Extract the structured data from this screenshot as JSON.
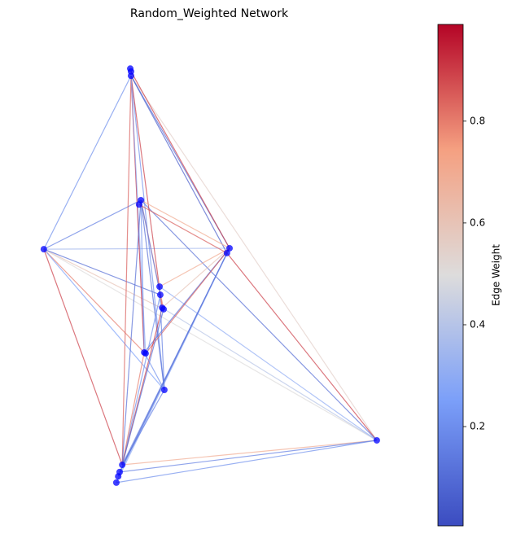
{
  "chart_data": {
    "type": "network",
    "title": "Random_Weighted Network",
    "node_color": "#0000ff",
    "node_x": [
      0.289,
      0.291,
      0.291,
      0.318,
      0.313,
      0.053,
      0.56,
      0.553,
      0.369,
      0.371,
      0.376,
      0.38,
      0.327,
      0.331,
      0.382,
      0.267,
      0.26,
      0.256,
      0.251,
      0.962
    ],
    "node_y": [
      0.908,
      0.902,
      0.893,
      0.634,
      0.625,
      0.532,
      0.534,
      0.524,
      0.454,
      0.437,
      0.41,
      0.407,
      0.317,
      0.315,
      0.239,
      0.083,
      0.068,
      0.059,
      0.046,
      0.134
    ],
    "xlim": [
      0,
      1
    ],
    "ylim": [
      0,
      1
    ],
    "edges": [
      {
        "source": 5,
        "target": 3,
        "weight": 0.15
      },
      {
        "source": 5,
        "target": 6,
        "weight": 0.35
      },
      {
        "source": 5,
        "target": 2,
        "weight": 0.2
      },
      {
        "source": 5,
        "target": 15,
        "weight": 0.9
      },
      {
        "source": 5,
        "target": 11,
        "weight": 0.6
      },
      {
        "source": 5,
        "target": 19,
        "weight": 0.5
      },
      {
        "source": 5,
        "target": 12,
        "weight": 0.8
      },
      {
        "source": 5,
        "target": 9,
        "weight": 0.1
      },
      {
        "source": 5,
        "target": 14,
        "weight": 0.25
      },
      {
        "source": 19,
        "target": 2,
        "weight": 0.55
      },
      {
        "source": 19,
        "target": 7,
        "weight": 0.9
      },
      {
        "source": 19,
        "target": 15,
        "weight": 0.7
      },
      {
        "source": 19,
        "target": 18,
        "weight": 0.2
      },
      {
        "source": 19,
        "target": 16,
        "weight": 0.15
      },
      {
        "source": 19,
        "target": 3,
        "weight": 0.1
      },
      {
        "source": 19,
        "target": 10,
        "weight": 0.4
      },
      {
        "source": 19,
        "target": 8,
        "weight": 0.3
      },
      {
        "source": 2,
        "target": 6,
        "weight": 0.1
      },
      {
        "source": 2,
        "target": 12,
        "weight": 0.95
      },
      {
        "source": 2,
        "target": 15,
        "weight": 0.85
      },
      {
        "source": 2,
        "target": 14,
        "weight": 0.2
      },
      {
        "source": 2,
        "target": 10,
        "weight": 0.9
      },
      {
        "source": 2,
        "target": 7,
        "weight": 0.05
      },
      {
        "source": 2,
        "target": 13,
        "weight": 0.3
      },
      {
        "source": 1,
        "target": 6,
        "weight": 0.9
      },
      {
        "source": 3,
        "target": 6,
        "weight": 0.7
      },
      {
        "source": 3,
        "target": 12,
        "weight": 0.2
      },
      {
        "source": 3,
        "target": 15,
        "weight": 0.1
      },
      {
        "source": 3,
        "target": 11,
        "weight": 0.8
      },
      {
        "source": 3,
        "target": 9,
        "weight": 0.15
      },
      {
        "source": 3,
        "target": 14,
        "weight": 0.1
      },
      {
        "source": 6,
        "target": 15,
        "weight": 0.15
      },
      {
        "source": 6,
        "target": 12,
        "weight": 0.1
      },
      {
        "source": 6,
        "target": 10,
        "weight": 0.6
      },
      {
        "source": 6,
        "target": 8,
        "weight": 0.7
      },
      {
        "source": 6,
        "target": 17,
        "weight": 0.2
      },
      {
        "source": 6,
        "target": 18,
        "weight": 0.3
      },
      {
        "source": 6,
        "target": 13,
        "weight": 0.85
      },
      {
        "source": 15,
        "target": 10,
        "weight": 0.9
      },
      {
        "source": 15,
        "target": 9,
        "weight": 0.2
      },
      {
        "source": 15,
        "target": 14,
        "weight": 0.15
      },
      {
        "source": 15,
        "target": 12,
        "weight": 0.8
      },
      {
        "source": 15,
        "target": 11,
        "weight": 0.1
      },
      {
        "source": 7,
        "target": 16,
        "weight": 0.1
      },
      {
        "source": 7,
        "target": 4,
        "weight": 0.85
      },
      {
        "source": 14,
        "target": 8,
        "weight": 0.15
      },
      {
        "source": 14,
        "target": 12,
        "weight": 0.2
      }
    ],
    "colormap": "coolwarm",
    "colorbar": {
      "label": "Edge Weight",
      "ylim": [
        0.005,
        0.99
      ],
      "yticks": [
        0.2,
        0.4,
        0.6,
        0.8
      ]
    }
  }
}
